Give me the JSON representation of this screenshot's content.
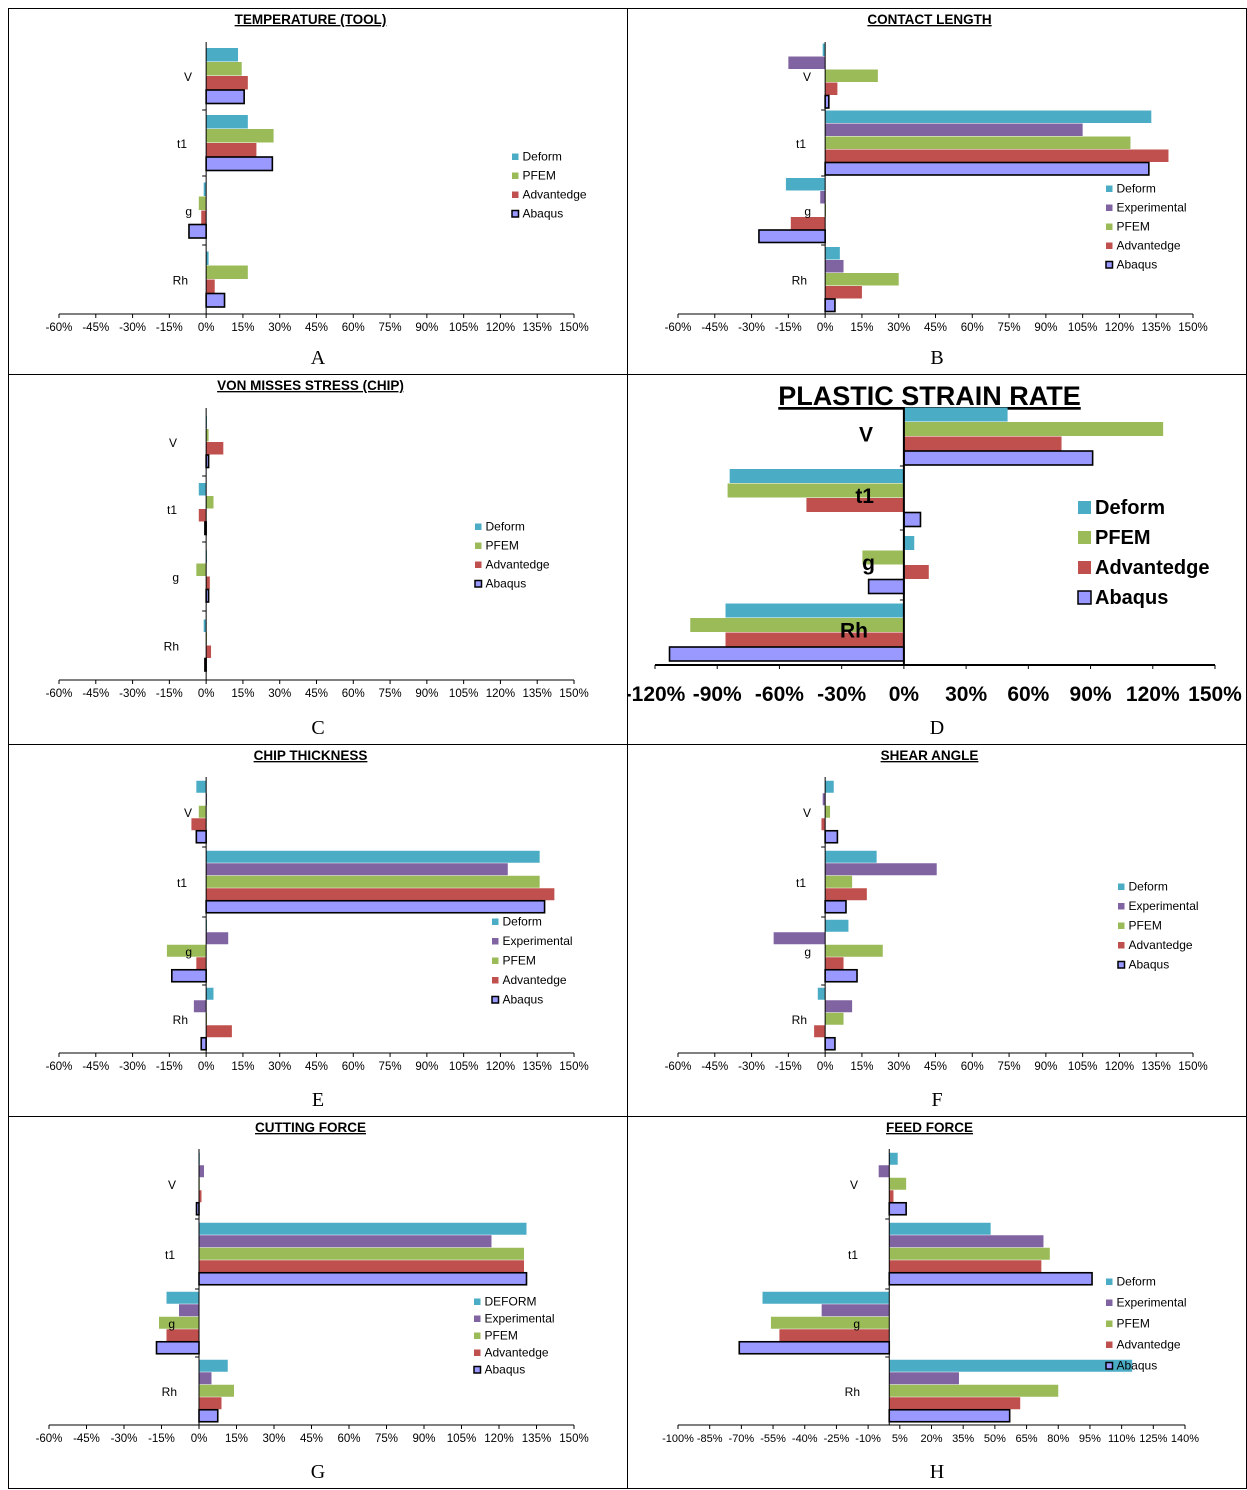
{
  "palette": {
    "Deform": "#4bacc6",
    "Experimental": "#8064a2",
    "PFEM": "#9bbb59",
    "Advantedge": "#c0504d",
    "Abaqus": "#9999ff"
  },
  "chart_data": [
    {
      "panel": "A",
      "title": "TEMPERATURE (TOOL)",
      "type": "bar",
      "orientation": "horizontal",
      "categories": [
        "V",
        "t1",
        "g",
        "Rh"
      ],
      "xlim": [
        -60,
        150
      ],
      "ticks": [
        -60,
        -45,
        -30,
        -15,
        0,
        15,
        30,
        45,
        60,
        75,
        90,
        105,
        120,
        135,
        150
      ],
      "tick_labels": [
        "-60%",
        "-45%",
        "-30%",
        "-15%",
        "0%",
        "15%",
        "30%",
        "45%",
        "60%",
        "75%",
        "90%",
        "105%",
        "120%",
        "135%",
        "150%"
      ],
      "legend": "right",
      "series": [
        {
          "name": "Deform",
          "values": [
            13,
            17,
            -1,
            1
          ]
        },
        {
          "name": "PFEM",
          "values": [
            14.5,
            27.5,
            -3,
            17
          ]
        },
        {
          "name": "Advantedge",
          "values": [
            17,
            20.5,
            -2,
            3.5
          ]
        },
        {
          "name": "Abaqus",
          "values": [
            15.5,
            27,
            -7,
            7.5
          ]
        }
      ]
    },
    {
      "panel": "B",
      "title": "CONTACT LENGTH",
      "type": "bar",
      "orientation": "horizontal",
      "categories": [
        "V",
        "t1",
        "g",
        "Rh"
      ],
      "xlim": [
        -60,
        150
      ],
      "ticks": [
        -60,
        -45,
        -30,
        -15,
        0,
        15,
        30,
        45,
        60,
        75,
        90,
        105,
        120,
        135,
        150
      ],
      "tick_labels": [
        "-60%",
        "-45%",
        "-30%",
        "-15%",
        "0%",
        "15%",
        "30%",
        "45%",
        "60%",
        "75%",
        "90%",
        "105%",
        "120%",
        "135%",
        "150%"
      ],
      "legend": "right",
      "series": [
        {
          "name": "Deform",
          "values": [
            -1,
            133,
            -16,
            6
          ]
        },
        {
          "name": "Experimental",
          "values": [
            -15,
            105,
            -2,
            7.5
          ]
        },
        {
          "name": "PFEM",
          "values": [
            21.5,
            124.5,
            0,
            30
          ]
        },
        {
          "name": "Advantedge",
          "values": [
            5,
            140,
            -14,
            15
          ]
        },
        {
          "name": "Abaqus",
          "values": [
            1.5,
            132,
            -27,
            4
          ]
        }
      ]
    },
    {
      "panel": "C",
      "title": "VON MISSES STRESS (CHIP)",
      "type": "bar",
      "orientation": "horizontal",
      "categories": [
        "V",
        "t1",
        "g",
        "Rh"
      ],
      "xlim": [
        -60,
        150
      ],
      "ticks": [
        -60,
        -45,
        -30,
        -15,
        0,
        15,
        30,
        45,
        60,
        75,
        90,
        105,
        120,
        135,
        150
      ],
      "tick_labels": [
        "-60%",
        "-45%",
        "-30%",
        "-15%",
        "0%",
        "15%",
        "30%",
        "45%",
        "60%",
        "75%",
        "90%",
        "105%",
        "120%",
        "135%",
        "150%"
      ],
      "legend": "right",
      "series": [
        {
          "name": "Deform",
          "values": [
            0,
            -3,
            0,
            -1
          ]
        },
        {
          "name": "PFEM",
          "values": [
            1,
            3,
            -4,
            0
          ]
        },
        {
          "name": "Advantedge",
          "values": [
            7,
            -3,
            1.5,
            2
          ]
        },
        {
          "name": "Abaqus",
          "values": [
            1,
            -0.5,
            1,
            -0.5
          ]
        }
      ]
    },
    {
      "panel": "D",
      "title": "PLASTIC STRAIN RATE",
      "type": "bar",
      "orientation": "horizontal",
      "categories": [
        "V",
        "t1",
        "g",
        "Rh"
      ],
      "xlim": [
        -120,
        150
      ],
      "ticks": [
        -120,
        -90,
        -60,
        -30,
        0,
        30,
        60,
        90,
        120,
        150
      ],
      "tick_labels": [
        "-120%",
        "-90%",
        "-60%",
        "-30%",
        "0%",
        "30%",
        "60%",
        "90%",
        "120%",
        "150%"
      ],
      "legend": "right",
      "style": "bold",
      "series": [
        {
          "name": "Deform",
          "values": [
            50,
            -84,
            5,
            -86
          ]
        },
        {
          "name": "PFEM",
          "values": [
            125,
            -85,
            -20,
            -103
          ]
        },
        {
          "name": "Advantedge",
          "values": [
            76,
            -47,
            12,
            -86
          ]
        },
        {
          "name": "Abaqus",
          "values": [
            91,
            8,
            -17,
            -113
          ]
        }
      ]
    },
    {
      "panel": "E",
      "title": "CHIP THICKNESS",
      "type": "bar",
      "orientation": "horizontal",
      "categories": [
        "V",
        "t1",
        "g",
        "Rh"
      ],
      "xlim": [
        -60,
        150
      ],
      "ticks": [
        -60,
        -45,
        -30,
        -15,
        0,
        15,
        30,
        45,
        60,
        75,
        90,
        105,
        120,
        135,
        150
      ],
      "tick_labels": [
        "-60%",
        "-45%",
        "-30%",
        "-15%",
        "0%",
        "15%",
        "30%",
        "45%",
        "60%",
        "75%",
        "90%",
        "105%",
        "120%",
        "135%",
        "150%"
      ],
      "legend": "right",
      "series": [
        {
          "name": "Deform",
          "values": [
            -4,
            136,
            0,
            3
          ]
        },
        {
          "name": "Experimental",
          "values": [
            0,
            123,
            9,
            -5
          ]
        },
        {
          "name": "PFEM",
          "values": [
            -3,
            136,
            -16,
            0
          ]
        },
        {
          "name": "Advantedge",
          "values": [
            -6,
            142,
            -4,
            10.5
          ]
        },
        {
          "name": "Abaqus",
          "values": [
            -4,
            138,
            -14,
            -2
          ]
        }
      ]
    },
    {
      "panel": "F",
      "title": "SHEAR ANGLE",
      "type": "bar",
      "orientation": "horizontal",
      "categories": [
        "V",
        "t1",
        "g",
        "Rh"
      ],
      "xlim": [
        -60,
        150
      ],
      "ticks": [
        -60,
        -45,
        -30,
        -15,
        0,
        15,
        30,
        45,
        60,
        75,
        90,
        105,
        120,
        135,
        150
      ],
      "tick_labels": [
        "-60%",
        "-45%",
        "-30%",
        "-15%",
        "0%",
        "15%",
        "30%",
        "45%",
        "60%",
        "75%",
        "90%",
        "105%",
        "120%",
        "135%",
        "150%"
      ],
      "legend": "right",
      "series": [
        {
          "name": "Deform",
          "values": [
            3.5,
            21,
            9.5,
            -3
          ]
        },
        {
          "name": "Experimental",
          "values": [
            -1,
            45.5,
            -21,
            11
          ]
        },
        {
          "name": "PFEM",
          "values": [
            2,
            11,
            23.5,
            7.5
          ]
        },
        {
          "name": "Advantedge",
          "values": [
            -1.5,
            17,
            7.5,
            -4.5
          ]
        },
        {
          "name": "Abaqus",
          "values": [
            5,
            8.5,
            13,
            4
          ]
        }
      ]
    },
    {
      "panel": "G",
      "title": "CUTTING FORCE",
      "type": "bar",
      "orientation": "horizontal",
      "categories": [
        "V",
        "t1",
        "g",
        "Rh"
      ],
      "xlim": [
        -60,
        150
      ],
      "ticks": [
        -60,
        -45,
        -30,
        -15,
        0,
        15,
        30,
        45,
        60,
        75,
        90,
        105,
        120,
        135,
        150
      ],
      "tick_labels": [
        "-60%",
        "-45%",
        "-30%",
        "-15%",
        "0%",
        "15%",
        "30%",
        "45%",
        "60%",
        "75%",
        "90%",
        "105%",
        "120%",
        "135%",
        "150%"
      ],
      "legend": "right",
      "series": [
        {
          "name": "DEFORM",
          "values": [
            0,
            131,
            -13,
            11.5
          ]
        },
        {
          "name": "Experimental",
          "values": [
            2,
            117,
            -8,
            5
          ]
        },
        {
          "name": "PFEM",
          "values": [
            0,
            130,
            -16,
            14
          ]
        },
        {
          "name": "Advantedge",
          "values": [
            1,
            130,
            -13,
            9
          ]
        },
        {
          "name": "Abaqus",
          "values": [
            -1,
            131,
            -17,
            7.5
          ]
        }
      ]
    },
    {
      "panel": "H",
      "title": "FEED FORCE",
      "type": "bar",
      "orientation": "horizontal",
      "categories": [
        "V",
        "t1",
        "g",
        "Rh"
      ],
      "xlim": [
        -100,
        140
      ],
      "ticks": [
        -100,
        -85,
        -70,
        -55,
        -40,
        -25,
        -10,
        5,
        20,
        35,
        50,
        65,
        80,
        95,
        110,
        125,
        140
      ],
      "tick_labels": [
        "-100%",
        "-85%",
        "-70%",
        "-55%",
        "-40%",
        "-25%",
        "-10%",
        "5%",
        "20%",
        "35%",
        "50%",
        "65%",
        "80%",
        "95%",
        "110%",
        "125%",
        "140%"
      ],
      "legend": "right",
      "series": [
        {
          "name": "Deform",
          "values": [
            4,
            48,
            -60,
            115
          ]
        },
        {
          "name": "Experimental",
          "values": [
            -5,
            73,
            -32,
            33
          ]
        },
        {
          "name": "PFEM",
          "values": [
            8,
            76,
            -56,
            80
          ]
        },
        {
          "name": "Advantedge",
          "values": [
            2,
            72,
            -52,
            62
          ]
        },
        {
          "name": "Abaqus",
          "values": [
            8,
            96,
            -71,
            57
          ]
        }
      ]
    }
  ]
}
